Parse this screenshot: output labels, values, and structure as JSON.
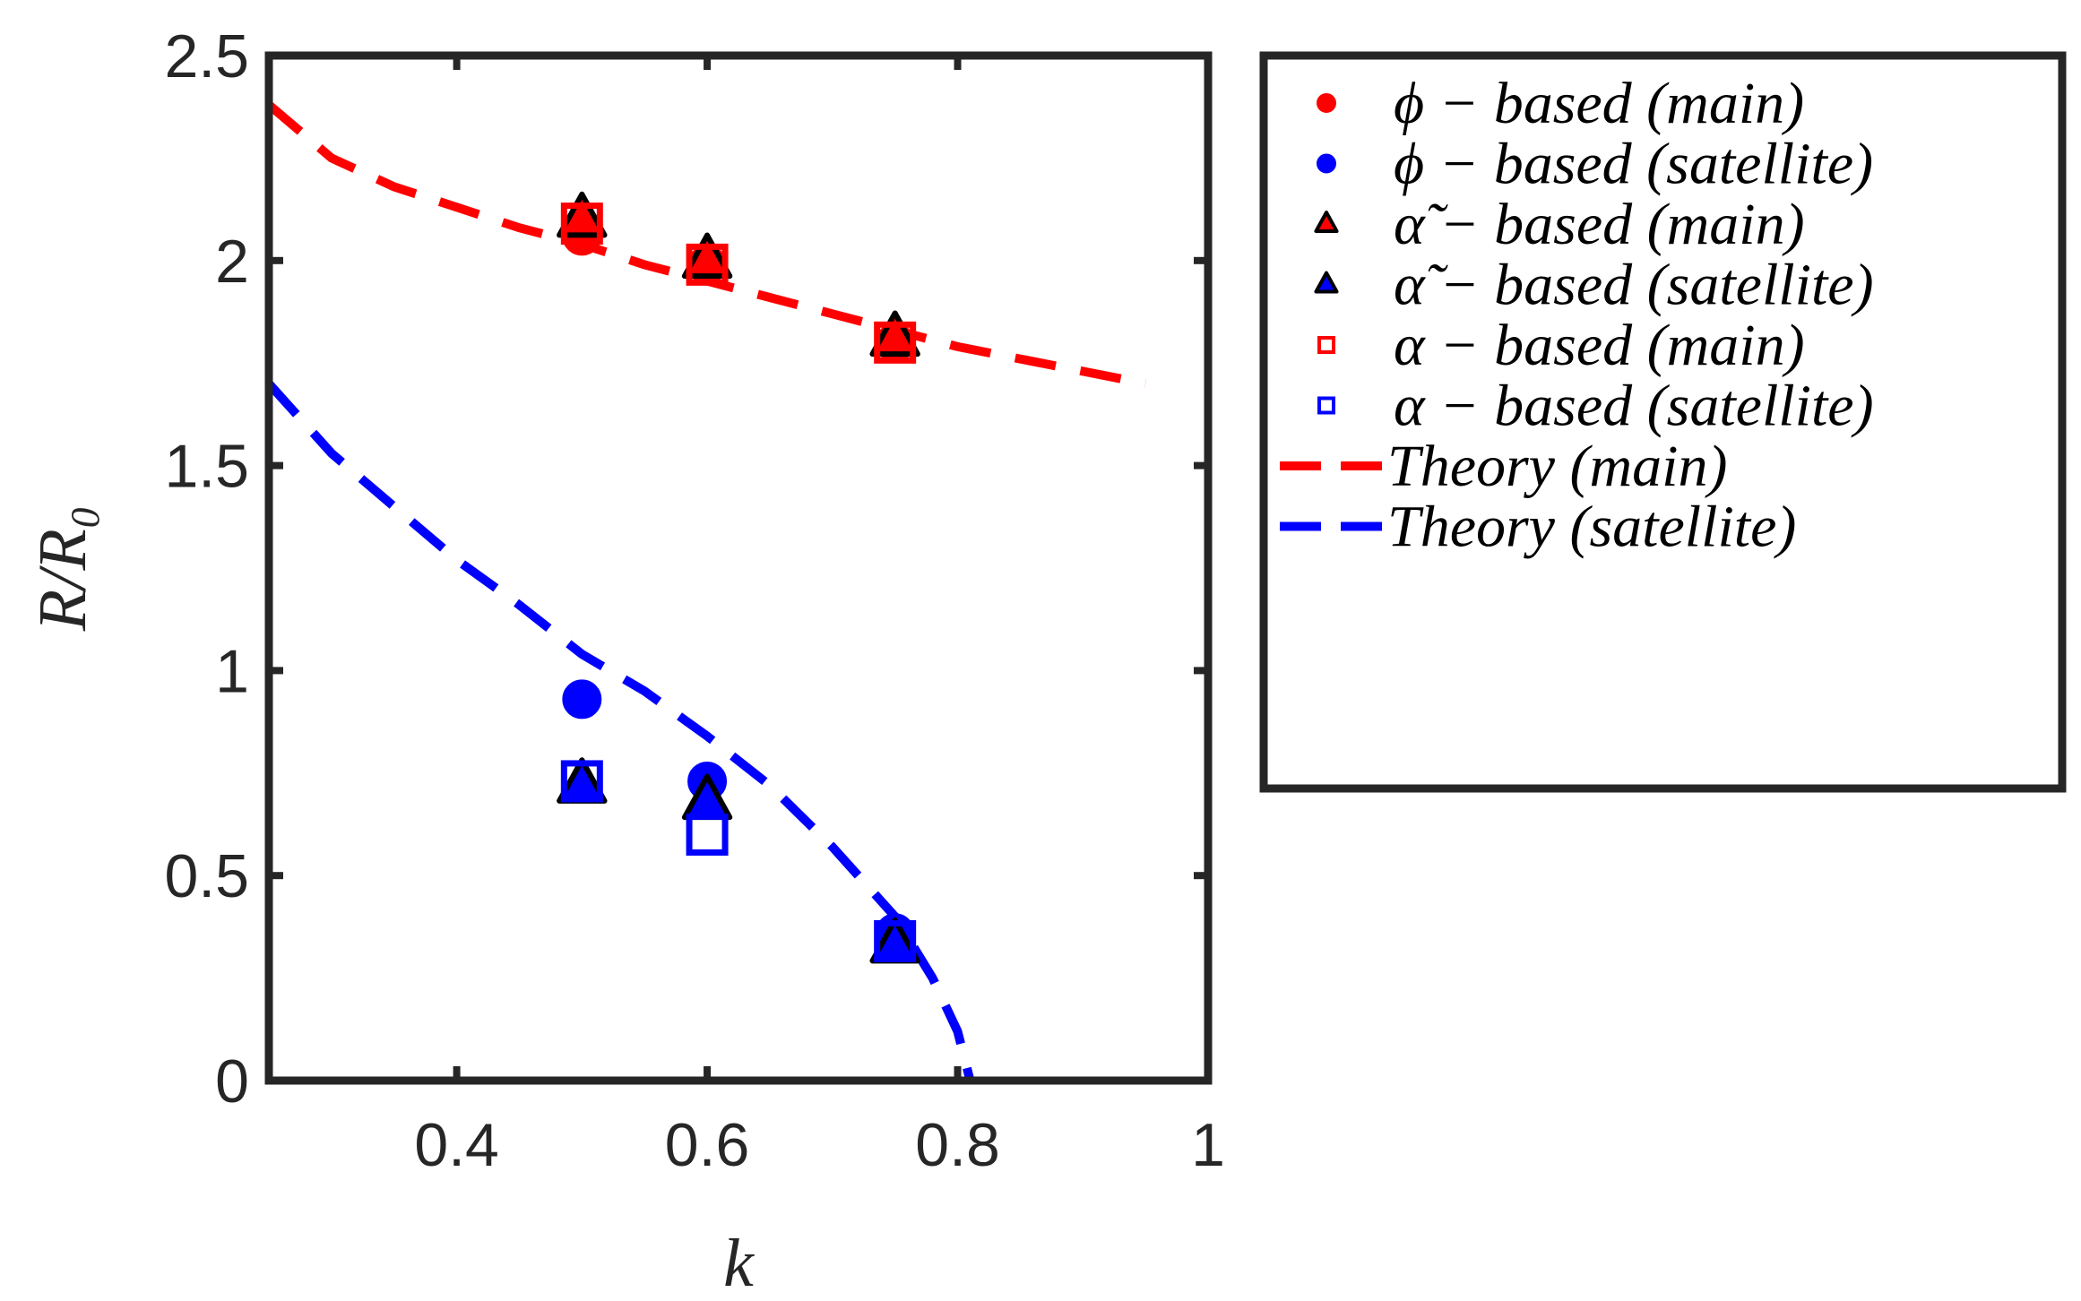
{
  "chart_data": {
    "type": "scatter",
    "title": "",
    "xlabel": "k",
    "ylabel": "R/R₀",
    "xlim": [
      0.25,
      1.0
    ],
    "ylim": [
      0,
      2.5
    ],
    "xticks": [
      0.4,
      0.6,
      0.8,
      1.0
    ],
    "xtick_labels": [
      "0.4",
      "0.6",
      "0.8",
      "1"
    ],
    "yticks": [
      0,
      0.5,
      1,
      1.5,
      2,
      2.5
    ],
    "ytick_labels": [
      "0",
      "0.5",
      "1",
      "1.5",
      "2",
      "2.5"
    ],
    "grid": false,
    "legend_position": "outside-right-top",
    "series": [
      {
        "name": "ϕ − based (main)",
        "marker": "circle",
        "filled": true,
        "color": "#ff0000",
        "edge": "#ff0000",
        "x": [
          0.5,
          0.6,
          0.75
        ],
        "y": [
          2.06,
          1.99,
          1.8
        ]
      },
      {
        "name": "ϕ − based (satellite)",
        "marker": "circle",
        "filled": true,
        "color": "#0000ff",
        "edge": "#0000ff",
        "x": [
          0.5,
          0.6,
          0.75
        ],
        "y": [
          0.93,
          0.73,
          0.36
        ]
      },
      {
        "name": "α̃ − based (main)",
        "marker": "triangle",
        "filled": true,
        "color": "#ff0000",
        "edge": "#000000",
        "x": [
          0.5,
          0.6,
          0.75
        ],
        "y": [
          2.1,
          2.0,
          1.81
        ]
      },
      {
        "name": "α̃ − based (satellite)",
        "marker": "triangle",
        "filled": true,
        "color": "#0000ff",
        "edge": "#000000",
        "x": [
          0.5,
          0.6,
          0.75
        ],
        "y": [
          0.72,
          0.68,
          0.33
        ]
      },
      {
        "name": "α − based (main)",
        "marker": "square",
        "filled": false,
        "color": "#ff0000",
        "edge": "#ff0000",
        "x": [
          0.5,
          0.6,
          0.75
        ],
        "y": [
          2.09,
          1.99,
          1.8
        ]
      },
      {
        "name": "α − based (satellite)",
        "marker": "square",
        "filled": false,
        "color": "#0000ff",
        "edge": "#0000ff",
        "x": [
          0.5,
          0.6,
          0.75
        ],
        "y": [
          0.73,
          0.6,
          0.34
        ]
      },
      {
        "name": "Theory (main)",
        "marker": "dashed-line",
        "color": "#ff0000",
        "x": [
          0.25,
          0.3,
          0.35,
          0.4,
          0.45,
          0.5,
          0.55,
          0.6,
          0.65,
          0.7,
          0.75,
          0.8,
          0.85,
          0.9,
          0.95
        ],
        "y": [
          2.38,
          2.25,
          2.18,
          2.13,
          2.08,
          2.04,
          1.99,
          1.95,
          1.91,
          1.87,
          1.83,
          1.79,
          1.76,
          1.73,
          1.7
        ]
      },
      {
        "name": "Theory (satellite)",
        "marker": "dashed-line",
        "color": "#0000ff",
        "x": [
          0.25,
          0.3,
          0.35,
          0.4,
          0.45,
          0.5,
          0.55,
          0.6,
          0.65,
          0.7,
          0.75,
          0.78,
          0.8,
          0.81
        ],
        "y": [
          1.7,
          1.53,
          1.4,
          1.27,
          1.16,
          1.04,
          0.95,
          0.84,
          0.72,
          0.57,
          0.4,
          0.25,
          0.12,
          0.0
        ]
      }
    ]
  }
}
